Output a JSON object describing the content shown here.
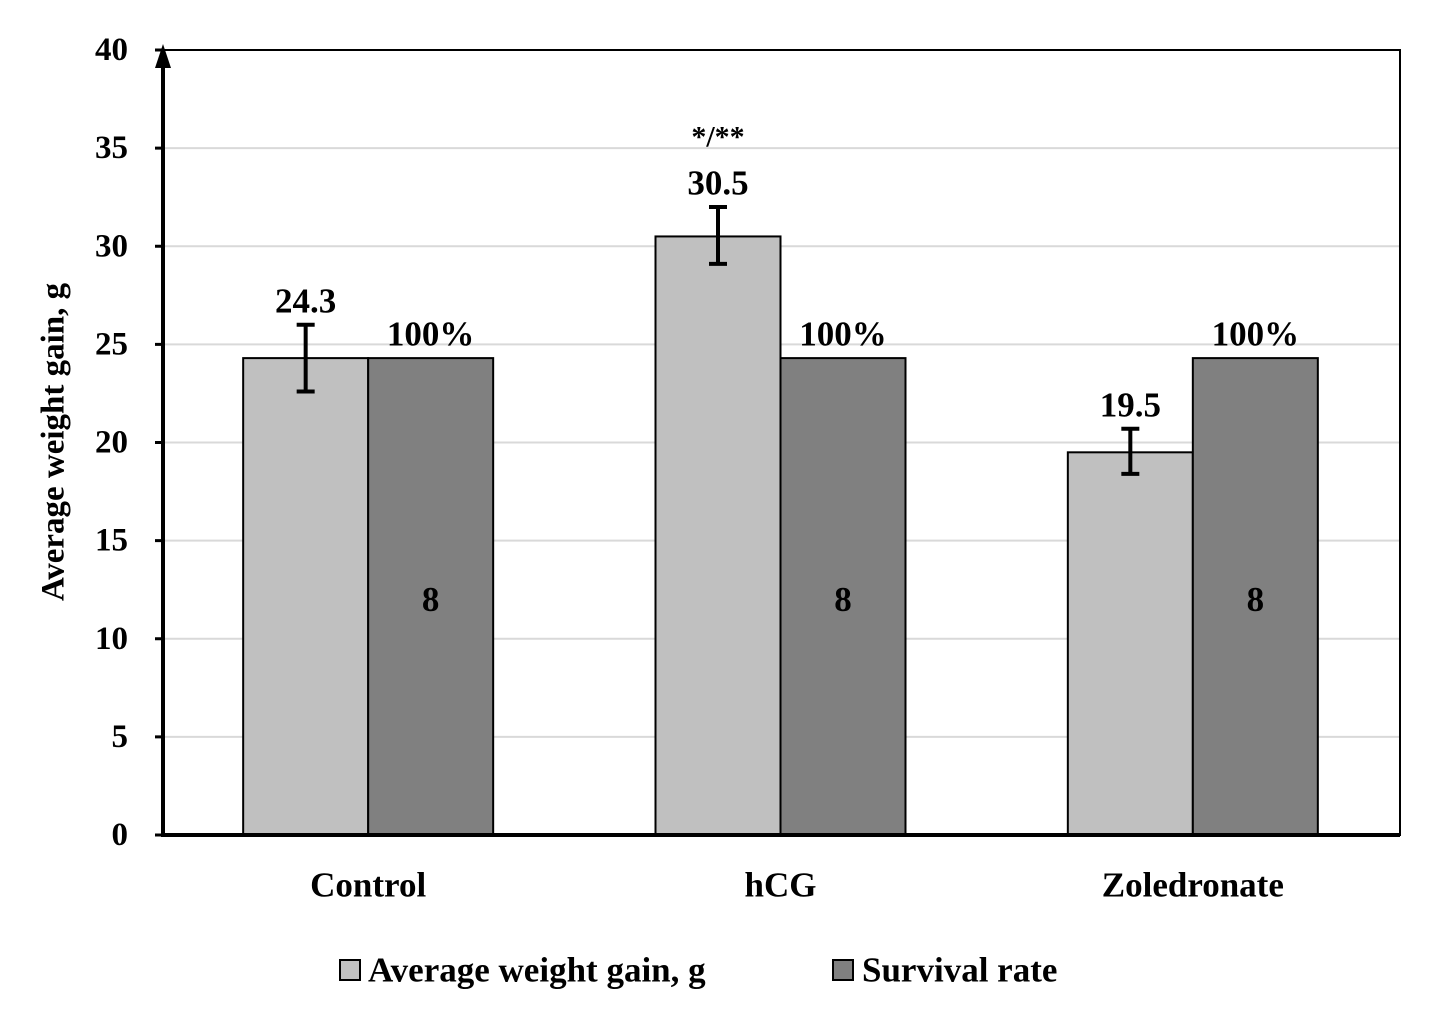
{
  "chart_data": {
    "type": "bar",
    "categories": [
      "Control",
      "hCG",
      "Zoledronate"
    ],
    "series": [
      {
        "name": "Average weight gain, g",
        "values": [
          24.3,
          30.5,
          19.5
        ],
        "error_low": [
          22.6,
          29.1,
          18.4
        ],
        "error_high": [
          26.0,
          32.0,
          20.7
        ],
        "labels": [
          "24.3",
          "30.5",
          "19.5"
        ],
        "annotations": [
          "",
          "*/**",
          ""
        ],
        "color": "#c0c0c0"
      },
      {
        "name": "Survival rate",
        "values": [
          24.3,
          24.3,
          24.3
        ],
        "labels": [
          "100%",
          "100%",
          "100%"
        ],
        "inner_labels": [
          "8",
          "8",
          "8"
        ],
        "color": "#808080"
      }
    ],
    "title": "",
    "xlabel": "",
    "ylabel": "Average weight gain, g",
    "ylim": [
      0,
      40
    ],
    "yticks": [
      "0",
      "5",
      "10",
      "15",
      "20",
      "25",
      "30",
      "35",
      "40"
    ],
    "grid": true,
    "legend_position": "bottom"
  }
}
